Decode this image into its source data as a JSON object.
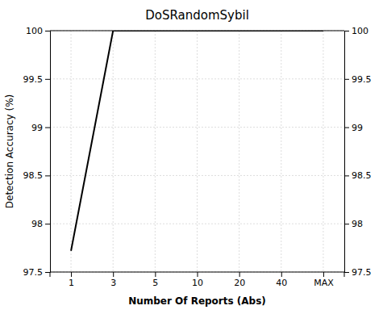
{
  "chart_data": {
    "type": "line",
    "title": "DoSRandomSybil",
    "xlabel": "Number Of Reports (Abs)",
    "ylabel": "Detection Accuracy (%)",
    "categories": [
      "1",
      "3",
      "5",
      "10",
      "20",
      "40",
      "MAX"
    ],
    "values": [
      97.72,
      100.0,
      100.0,
      100.0,
      100.0,
      100.0,
      100.0
    ],
    "color": "#000000",
    "ylim": [
      97.5,
      100.0
    ],
    "yticks": [
      97.5,
      98,
      98.5,
      99,
      99.5,
      100
    ],
    "y2lim": [
      97.5,
      100.0
    ],
    "y2ticks": [
      97.5,
      98,
      98.5,
      99,
      99.5,
      100
    ],
    "grid": true
  }
}
